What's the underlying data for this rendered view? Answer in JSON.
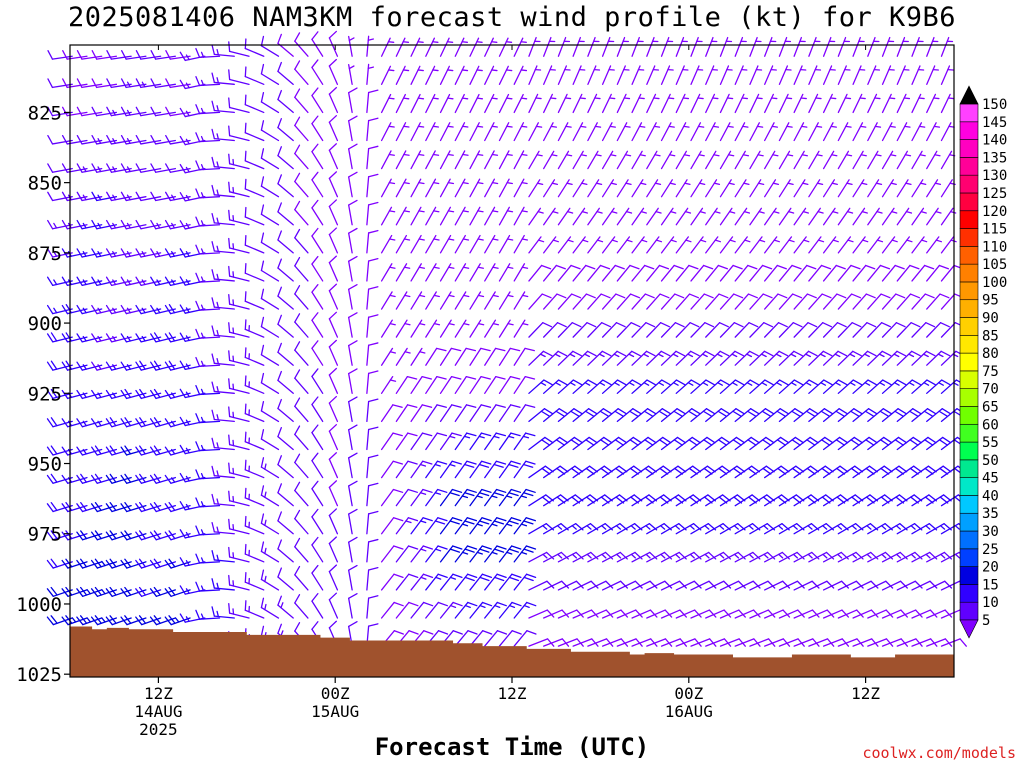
{
  "title": "2025081406 NAM3KM forecast wind profile (kt) for K9B6",
  "credit": "coolwx.com/models",
  "colors": {
    "ground": "#a0522d",
    "background": "#ffffff",
    "credit": "#dd2222"
  },
  "chart_data": {
    "type": "wind-barb time-height profile",
    "title": "2025081406 NAM3KM forecast wind profile (kt) for K9B6",
    "xlabel": "Forecast Time (UTC)",
    "ylabel": "",
    "x_unit": "forecast hour from 2025-08-14 06Z",
    "xlim": [
      0,
      60
    ],
    "ylim": [
      1026,
      801
    ],
    "y_scale": "pressure (hPa), inverted",
    "y_ticks": [
      825,
      850,
      875,
      900,
      925,
      950,
      975,
      1000,
      1025
    ],
    "x_ticks": [
      {
        "hour": 6,
        "lines": [
          "12Z",
          "14AUG",
          "2025"
        ]
      },
      {
        "hour": 18,
        "lines": [
          "00Z",
          "15AUG"
        ]
      },
      {
        "hour": 30,
        "lines": [
          "12Z"
        ]
      },
      {
        "hour": 42,
        "lines": [
          "00Z",
          "16AUG"
        ]
      },
      {
        "hour": 54,
        "lines": [
          "12Z"
        ]
      }
    ],
    "surface_pressure": {
      "hours": [
        0,
        1.5,
        2.5,
        4,
        7,
        12,
        17,
        19,
        26,
        28,
        31,
        34,
        38,
        39,
        41,
        45,
        49,
        53,
        56,
        59.2
      ],
      "pressure": [
        1008,
        1009,
        1008.5,
        1009,
        1010,
        1011,
        1012,
        1013,
        1014,
        1015,
        1016,
        1017,
        1018,
        1017.5,
        1018,
        1019,
        1018,
        1019,
        1018,
        1018
      ]
    },
    "legend": {
      "type": "colorbar",
      "title": "",
      "levels": [
        5,
        10,
        15,
        20,
        25,
        30,
        35,
        40,
        45,
        50,
        55,
        60,
        65,
        70,
        75,
        80,
        85,
        90,
        95,
        100,
        105,
        110,
        115,
        120,
        125,
        130,
        135,
        140,
        145,
        150
      ],
      "colors": [
        "#8000ff",
        "#6000ff",
        "#3000ff",
        "#0000e0",
        "#0040ff",
        "#0070ff",
        "#00a0ff",
        "#00c8ff",
        "#00e8c8",
        "#00e890",
        "#00ff50",
        "#40ff20",
        "#70ff00",
        "#a8ff00",
        "#d8ff00",
        "#ffff00",
        "#ffe800",
        "#ffd000",
        "#ffb000",
        "#ff9800",
        "#ff8000",
        "#ff6000",
        "#ff3000",
        "#ff0000",
        "#ff0040",
        "#ff0070",
        "#ff0098",
        "#ff00c0",
        "#ff00e0",
        "#ff40ff"
      ]
    },
    "barb_levels_hpa": [
      805,
      815,
      825,
      835,
      845,
      855,
      865,
      875,
      885,
      895,
      905,
      915,
      925,
      935,
      945,
      955,
      965,
      975,
      985,
      995,
      1005,
      1015
    ],
    "barb_hours": [
      0,
      1,
      2,
      3,
      4,
      5,
      6,
      7,
      8,
      9,
      10,
      11,
      12,
      13,
      14,
      15,
      16,
      17,
      18,
      19,
      20,
      21,
      22,
      23,
      24,
      25,
      26,
      27,
      28,
      29,
      30,
      31,
      32,
      33,
      34,
      35,
      36,
      37,
      38,
      39,
      40,
      41,
      42,
      43,
      44,
      45,
      46,
      47,
      48,
      49,
      50,
      51,
      52,
      53,
      54,
      55,
      56,
      57,
      58,
      59
    ],
    "wind_regimes": [
      {
        "hours": [
          0,
          10
        ],
        "description": "southwesterly-westerly flow",
        "dir_from_deg": 255,
        "speed_kt": [
          5,
          25
        ]
      },
      {
        "hours": [
          10,
          19
        ],
        "description": "westerly to northerly, weakening",
        "dir_from_deg": 300,
        "speed_kt": [
          5,
          12
        ]
      },
      {
        "hours": [
          19,
          21
        ],
        "description": "northerly to northeasterly",
        "dir_from_deg": 20,
        "speed_kt": [
          5,
          15
        ]
      },
      {
        "hours": [
          21,
          30
        ],
        "description": "northeasterly, strongest near 975 hPa",
        "dir_from_deg": 30,
        "speed_kt": [
          10,
          25
        ]
      },
      {
        "hours": [
          30,
          60
        ],
        "description": "north-northeasterly aloft, easterly low levels",
        "dir_from_deg": 40,
        "speed_kt": [
          5,
          25
        ]
      }
    ]
  }
}
